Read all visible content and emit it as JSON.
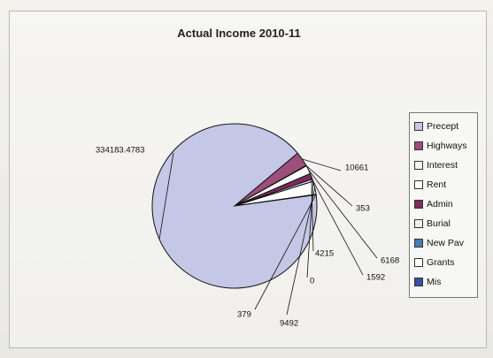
{
  "chart_data": {
    "type": "pie",
    "title": "Actual Income 2010-11",
    "legend_position": "right",
    "slices": [
      {
        "name": "Precept",
        "value": 334183.4783,
        "label": "334183.4783",
        "color": "#c4c8e6"
      },
      {
        "name": "Highways",
        "value": 10661,
        "label": "10661",
        "color": "#9b4f7a"
      },
      {
        "name": "Interest",
        "value": 353,
        "label": "353",
        "color": "#f3f3f3"
      },
      {
        "name": "Rent",
        "value": 6168,
        "label": "6168",
        "color": "#ffffff"
      },
      {
        "name": "Admin",
        "value": 4215,
        "label": "4215",
        "color": "#7d2b5f"
      },
      {
        "name": "Burial",
        "value": 1592,
        "label": "1592",
        "color": "#eeeeee"
      },
      {
        "name": "New Pav",
        "value": 0,
        "label": "0",
        "color": "#4c7ab0"
      },
      {
        "name": "Grants",
        "value": 9492,
        "label": "9492",
        "color": "#ffffff"
      },
      {
        "name": "Mis",
        "value": 379,
        "label": "379",
        "color": "#3e4ea0"
      }
    ]
  }
}
